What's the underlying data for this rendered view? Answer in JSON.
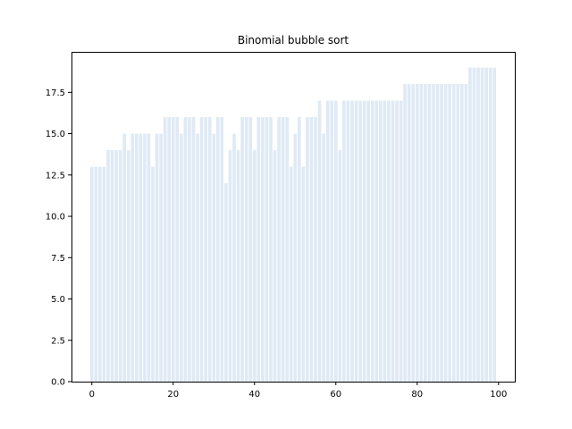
{
  "chart_data": {
    "type": "bar",
    "title": "Binomial bubble sort",
    "xlabel": "",
    "ylabel": "",
    "bar_color": "#dfeaf5",
    "x": [
      0,
      1,
      2,
      3,
      4,
      5,
      6,
      7,
      8,
      9,
      10,
      11,
      12,
      13,
      14,
      15,
      16,
      17,
      18,
      19,
      20,
      21,
      22,
      23,
      24,
      25,
      26,
      27,
      28,
      29,
      30,
      31,
      32,
      33,
      34,
      35,
      36,
      37,
      38,
      39,
      40,
      41,
      42,
      43,
      44,
      45,
      46,
      47,
      48,
      49,
      50,
      51,
      52,
      53,
      54,
      55,
      56,
      57,
      58,
      59,
      60,
      61,
      62,
      63,
      64,
      65,
      66,
      67,
      68,
      69,
      70,
      71,
      72,
      73,
      74,
      75,
      76,
      77,
      78,
      79,
      80,
      81,
      82,
      83,
      84,
      85,
      86,
      87,
      88,
      89,
      90,
      91,
      92,
      93,
      94,
      95,
      96,
      97,
      98,
      99
    ],
    "values": [
      13,
      13,
      13,
      13,
      14,
      14,
      14,
      14,
      15,
      14,
      15,
      15,
      15,
      15,
      15,
      13,
      15,
      15,
      16,
      16,
      16,
      16,
      15,
      16,
      16,
      16,
      15,
      16,
      16,
      16,
      15,
      16,
      16,
      12,
      14,
      15,
      14,
      16,
      16,
      16,
      14,
      16,
      16,
      16,
      16,
      14,
      16,
      16,
      16,
      13,
      15,
      16,
      13,
      16,
      16,
      16,
      17,
      15,
      17,
      17,
      17,
      14,
      17,
      17,
      17,
      17,
      17,
      17,
      17,
      17,
      17,
      17,
      17,
      17,
      17,
      17,
      17,
      18,
      18,
      18,
      18,
      18,
      18,
      18,
      18,
      18,
      18,
      18,
      18,
      18,
      18,
      18,
      18,
      19,
      19,
      19,
      19,
      19,
      19,
      19
    ],
    "xlim": [
      -5.0,
      104.0
    ],
    "ylim": [
      0,
      19.95
    ],
    "xticks": [
      0,
      20,
      40,
      60,
      80,
      100
    ],
    "xtick_labels": [
      "0",
      "20",
      "40",
      "60",
      "80",
      "100"
    ],
    "yticks": [
      0,
      2.5,
      5,
      7.5,
      10,
      12.5,
      15,
      17.5
    ],
    "ytick_labels": [
      "0.0",
      "2.5",
      "5.0",
      "7.5",
      "10.0",
      "12.5",
      "15.0",
      "17.5"
    ],
    "grid": false,
    "legend": "none"
  }
}
